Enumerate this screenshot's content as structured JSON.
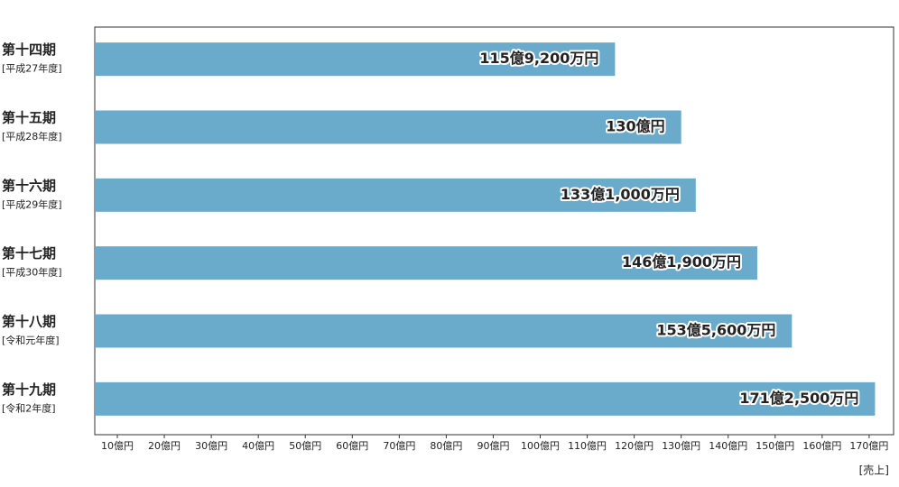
{
  "chart_data": {
    "type": "hbar",
    "categories": [
      "第十四期",
      "第十五期",
      "第十六期",
      "第十七期",
      "第十八期",
      "第十九期"
    ],
    "category_notes": [
      "[平成27年度]",
      "[平成28年度]",
      "[平成29年度]",
      "[平成30年度]",
      "[令和元年度]",
      "[令和2年度]"
    ],
    "values": [
      115.92,
      130,
      133.1,
      146.19,
      153.56,
      171.25
    ],
    "value_labels": [
      "115億9,200万円",
      "130億円",
      "133億1,000万円",
      "146億1,900万円",
      "153億5,600万円",
      "171億2,500万円"
    ],
    "color": "#6aabcb",
    "xlim": [
      5.2,
      175.2
    ],
    "xticks": [
      {
        "value": 10,
        "label": "10億円"
      },
      {
        "value": 20,
        "label": "20億円"
      },
      {
        "value": 30,
        "label": "30億円"
      },
      {
        "value": 40,
        "label": "40億円"
      },
      {
        "value": 50,
        "label": "50億円"
      },
      {
        "value": 60,
        "label": "60億円"
      },
      {
        "value": 70,
        "label": "70億円"
      },
      {
        "value": 80,
        "label": "80億円"
      },
      {
        "value": 90,
        "label": "90億円"
      },
      {
        "value": 100,
        "label": "100億円"
      },
      {
        "value": 110,
        "label": "110億円"
      },
      {
        "value": 120,
        "label": "120億円"
      },
      {
        "value": 130,
        "label": "130億円"
      },
      {
        "value": 140,
        "label": "140億円"
      },
      {
        "value": 150,
        "label": "150億円"
      },
      {
        "value": 160,
        "label": "160億円"
      },
      {
        "value": 170,
        "label": "170億円"
      }
    ],
    "xlabel": "[売上]"
  }
}
